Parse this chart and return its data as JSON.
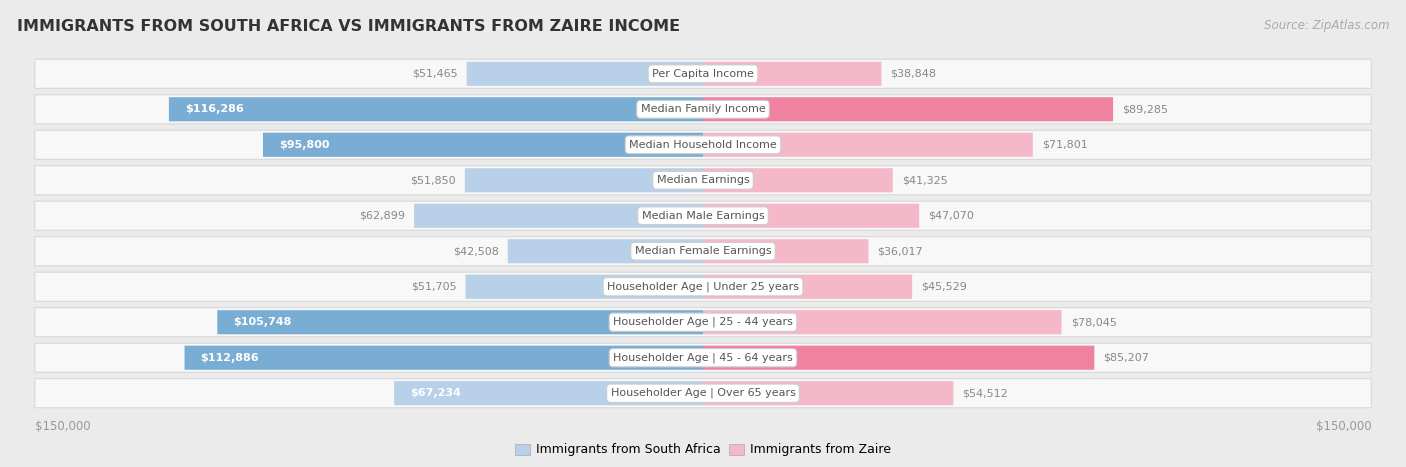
{
  "title": "IMMIGRANTS FROM SOUTH AFRICA VS IMMIGRANTS FROM ZAIRE INCOME",
  "source": "Source: ZipAtlas.com",
  "categories": [
    "Per Capita Income",
    "Median Family Income",
    "Median Household Income",
    "Median Earnings",
    "Median Male Earnings",
    "Median Female Earnings",
    "Householder Age | Under 25 years",
    "Householder Age | 25 - 44 years",
    "Householder Age | 45 - 64 years",
    "Householder Age | Over 65 years"
  ],
  "south_africa_values": [
    51465,
    116286,
    95800,
    51850,
    62899,
    42508,
    51705,
    105748,
    112886,
    67234
  ],
  "zaire_values": [
    38848,
    89285,
    71801,
    41325,
    47070,
    36017,
    45529,
    78045,
    85207,
    54512
  ],
  "south_africa_labels": [
    "$51,465",
    "$116,286",
    "$95,800",
    "$51,850",
    "$62,899",
    "$42,508",
    "$51,705",
    "$105,748",
    "$112,886",
    "$67,234"
  ],
  "zaire_labels": [
    "$38,848",
    "$89,285",
    "$71,801",
    "$41,325",
    "$47,070",
    "$36,017",
    "$45,529",
    "$78,045",
    "$85,207",
    "$54,512"
  ],
  "max_value": 150000,
  "south_africa_color_light": "#b8d0e8",
  "south_africa_color_dark": "#7aadd4",
  "zaire_color_light": "#f5b8c8",
  "zaire_color_dark": "#ef82a0",
  "background_color": "#ebebeb",
  "row_bg_color": "#f8f8f8",
  "row_border_color": "#d8d8d8",
  "legend_sa": "Immigrants from South Africa",
  "legend_zaire": "Immigrants from Zaire",
  "axis_label_left": "$150,000",
  "axis_label_right": "$150,000",
  "inside_label_threshold": 65000,
  "dark_color_threshold": 80000
}
